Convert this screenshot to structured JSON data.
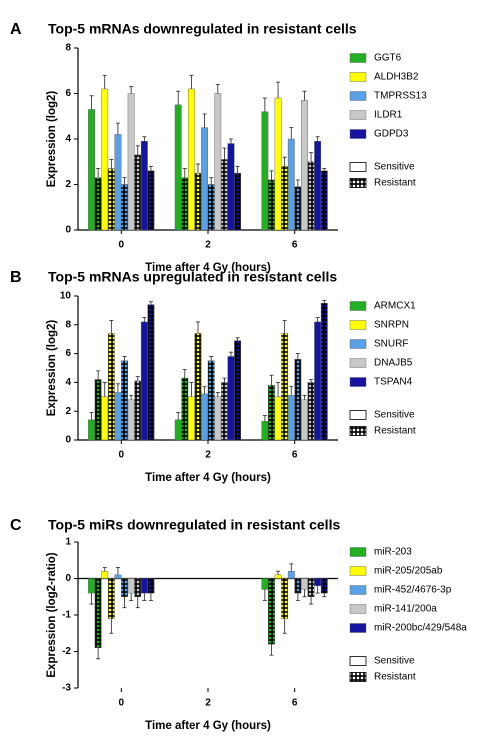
{
  "chart_data": [
    {
      "type": "bar",
      "panel": "A",
      "title": "Top-5 mRNAs downregulated in resistant cells",
      "ylabel": "Expression (log2)",
      "xlabel": "Time after 4 Gy (hours)",
      "categories": [
        "0",
        "2",
        "6"
      ],
      "ylim": [
        0,
        8
      ],
      "yticks": [
        0,
        2,
        4,
        6,
        8
      ],
      "conditions": [
        "Sensitive",
        "Resistant"
      ],
      "series": [
        {
          "name": "GGT6",
          "color": "#22b022",
          "sensitive": {
            "values": [
              5.3,
              5.5,
              5.2
            ],
            "errors": [
              0.6,
              0.6,
              0.6
            ]
          },
          "resistant": {
            "values": [
              2.3,
              2.3,
              2.2
            ],
            "errors": [
              0.4,
              0.4,
              0.4
            ]
          }
        },
        {
          "name": "ALDH3B2",
          "color": "#ffff00",
          "sensitive": {
            "values": [
              6.2,
              6.2,
              5.8
            ],
            "errors": [
              0.6,
              0.6,
              0.7
            ]
          },
          "resistant": {
            "values": [
              2.7,
              2.5,
              2.8
            ],
            "errors": [
              0.4,
              0.4,
              0.4
            ]
          }
        },
        {
          "name": "TMPRSS13",
          "color": "#5aa0e6",
          "sensitive": {
            "values": [
              4.2,
              4.5,
              4.0
            ],
            "errors": [
              0.5,
              0.6,
              0.5
            ]
          },
          "resistant": {
            "values": [
              2.0,
              2.0,
              1.9
            ],
            "errors": [
              0.3,
              0.3,
              0.3
            ]
          }
        },
        {
          "name": "ILDR1",
          "color": "#c8c8c8",
          "sensitive": {
            "values": [
              6.0,
              6.0,
              5.7
            ],
            "errors": [
              0.3,
              0.4,
              0.4
            ]
          },
          "resistant": {
            "values": [
              3.3,
              3.1,
              3.0
            ],
            "errors": [
              0.4,
              0.5,
              0.4
            ]
          }
        },
        {
          "name": "GDPD3",
          "color": "#1414a0",
          "sensitive": {
            "values": [
              3.9,
              3.8,
              3.9
            ],
            "errors": [
              0.2,
              0.2,
              0.2
            ]
          },
          "resistant": {
            "values": [
              2.6,
              2.5,
              2.6
            ],
            "errors": [
              0.2,
              0.3,
              0.1
            ]
          }
        }
      ]
    },
    {
      "type": "bar",
      "panel": "B",
      "title": "Top-5 mRNAs upregulated in resistant cells",
      "ylabel": "Expression (log2)",
      "xlabel": "Time after 4 Gy (hours)",
      "categories": [
        "0",
        "2",
        "6"
      ],
      "ylim": [
        0,
        10
      ],
      "yticks": [
        0,
        2,
        4,
        6,
        8,
        10
      ],
      "conditions": [
        "Sensitive",
        "Resistant"
      ],
      "series": [
        {
          "name": "ARMCX1",
          "color": "#22b022",
          "sensitive": {
            "values": [
              1.4,
              1.4,
              1.3
            ],
            "errors": [
              0.5,
              0.5,
              0.4
            ]
          },
          "resistant": {
            "values": [
              4.2,
              4.3,
              3.8
            ],
            "errors": [
              0.6,
              0.6,
              0.7
            ]
          }
        },
        {
          "name": "SNRPN",
          "color": "#ffff00",
          "sensitive": {
            "values": [
              3.0,
              3.0,
              3.0
            ],
            "errors": [
              1.0,
              1.0,
              1.0
            ]
          },
          "resistant": {
            "values": [
              7.4,
              7.4,
              7.4
            ],
            "errors": [
              0.9,
              0.8,
              0.9
            ]
          }
        },
        {
          "name": "SNURF",
          "color": "#5aa0e6",
          "sensitive": {
            "values": [
              3.3,
              3.2,
              3.1
            ],
            "errors": [
              0.6,
              0.5,
              0.6
            ]
          },
          "resistant": {
            "values": [
              5.5,
              5.5,
              5.6
            ],
            "errors": [
              0.3,
              0.3,
              0.4
            ]
          }
        },
        {
          "name": "DNAJB5",
          "color": "#c8c8c8",
          "sensitive": {
            "values": [
              2.8,
              3.0,
              2.8
            ],
            "errors": [
              0.3,
              0.3,
              0.3
            ]
          },
          "resistant": {
            "values": [
              4.1,
              4.0,
              4.0
            ],
            "errors": [
              0.3,
              0.3,
              0.2
            ]
          }
        },
        {
          "name": "TSPAN4",
          "color": "#1414a0",
          "sensitive": {
            "values": [
              8.2,
              5.8,
              8.2
            ],
            "errors": [
              0.3,
              0.3,
              0.3
            ]
          },
          "resistant": {
            "values": [
              9.4,
              6.9,
              9.5
            ],
            "errors": [
              0.2,
              0.2,
              0.2
            ]
          }
        }
      ]
    },
    {
      "type": "bar",
      "panel": "C",
      "title": "Top-5 miRs downregulated in resistant cells",
      "ylabel": "Expression (log2-ratio)",
      "xlabel": "Time after 4 Gy (hours)",
      "categories": [
        "0",
        "2",
        "6"
      ],
      "ylim": [
        -3,
        1
      ],
      "yticks": [
        -3,
        -2,
        -1,
        0,
        1
      ],
      "conditions": [
        "Sensitive",
        "Resistant"
      ],
      "series": [
        {
          "name": "miR-203",
          "color": "#22b022",
          "sensitive": {
            "values": [
              -0.4,
              null,
              -0.3
            ],
            "errors": [
              0.3,
              null,
              0.3
            ]
          },
          "resistant": {
            "values": [
              -1.9,
              null,
              -1.8
            ],
            "errors": [
              0.3,
              null,
              0.3
            ]
          }
        },
        {
          "name": "miR-205/205ab",
          "color": "#ffff00",
          "sensitive": {
            "values": [
              0.2,
              null,
              0.1
            ],
            "errors": [
              0.1,
              null,
              0.1
            ]
          },
          "resistant": {
            "values": [
              -1.1,
              null,
              -1.1
            ],
            "errors": [
              0.4,
              null,
              0.4
            ]
          }
        },
        {
          "name": "miR-452/4676-3p",
          "color": "#5aa0e6",
          "sensitive": {
            "values": [
              0.1,
              null,
              0.2
            ],
            "errors": [
              0.2,
              null,
              0.2
            ]
          },
          "resistant": {
            "values": [
              -0.5,
              null,
              -0.4
            ],
            "errors": [
              0.3,
              null,
              0.2
            ]
          }
        },
        {
          "name": "miR-141/200a",
          "color": "#c8c8c8",
          "sensitive": {
            "values": [
              -0.4,
              null,
              -0.3
            ],
            "errors": [
              0.2,
              null,
              0.2
            ]
          },
          "resistant": {
            "values": [
              -0.5,
              null,
              -0.5
            ],
            "errors": [
              0.3,
              null,
              0.2
            ]
          }
        },
        {
          "name": "miR-200bc/429/548a",
          "color": "#1414a0",
          "sensitive": {
            "values": [
              -0.4,
              null,
              -0.2
            ],
            "errors": [
              0.2,
              null,
              0.2
            ]
          },
          "resistant": {
            "values": [
              -0.4,
              null,
              -0.4
            ],
            "errors": [
              0.2,
              null,
              0.1
            ]
          }
        }
      ]
    }
  ]
}
